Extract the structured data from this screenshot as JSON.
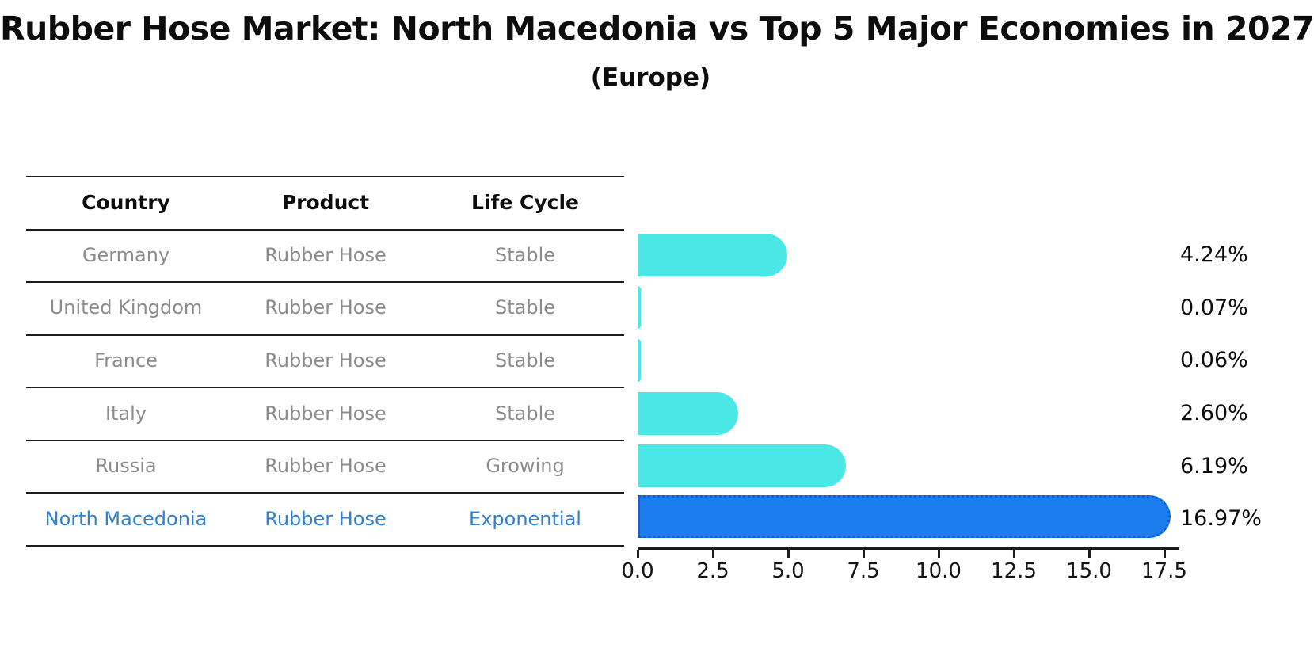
{
  "header": {
    "title": "Rubber Hose Market: North Macedonia vs Top 5 Major Economies in 2027",
    "subtitle": "(Europe)"
  },
  "table": {
    "columns": [
      "Country",
      "Product",
      "Life Cycle"
    ],
    "rows": [
      {
        "country": "Germany",
        "product": "Rubber Hose",
        "life_cycle": "Stable"
      },
      {
        "country": "United Kingdom",
        "product": "Rubber Hose",
        "life_cycle": "Stable"
      },
      {
        "country": "France",
        "product": "Rubber Hose",
        "life_cycle": "Stable"
      },
      {
        "country": "Italy",
        "product": "Rubber Hose",
        "life_cycle": "Stable"
      },
      {
        "country": "Russia",
        "product": "Rubber Hose",
        "life_cycle": "Growing"
      },
      {
        "country": "North Macedonia",
        "product": "Rubber Hose",
        "life_cycle": "Exponential"
      }
    ],
    "highlighted_row": "North Macedonia"
  },
  "chart_data": {
    "type": "bar",
    "orientation": "horizontal",
    "categories": [
      "Germany",
      "United Kingdom",
      "France",
      "Italy",
      "Russia",
      "North Macedonia"
    ],
    "values": [
      4.24,
      0.07,
      0.06,
      2.6,
      6.19,
      16.97
    ],
    "value_labels": [
      "4.24%",
      "0.07%",
      "0.06%",
      "2.60%",
      "6.19%",
      "16.97%"
    ],
    "highlight_index": 5,
    "xtick_labels": [
      "0.0",
      "2.5",
      "5.0",
      "7.5",
      "10.0",
      "12.5",
      "15.0",
      "17.5"
    ],
    "xlim": [
      0,
      18
    ],
    "grid": false,
    "legend": false,
    "bar_color_default": "#4be6e6",
    "bar_color_highlight": "#1c7def",
    "title": "Rubber Hose Market: North Macedonia vs Top 5 Major Economies in 2027",
    "subtitle": "(Europe)",
    "xlabel": "",
    "ylabel": ""
  },
  "colors": {
    "background": "#ffffff",
    "bar_cyan": "#4be6e6",
    "bar_blue": "#1c7def",
    "bar_blue_dotted_edge": "#135fd0",
    "table_text_gray": "#8c8c8c",
    "highlight_text_blue": "#2f80ce",
    "line_black": "#1c1c1c"
  }
}
